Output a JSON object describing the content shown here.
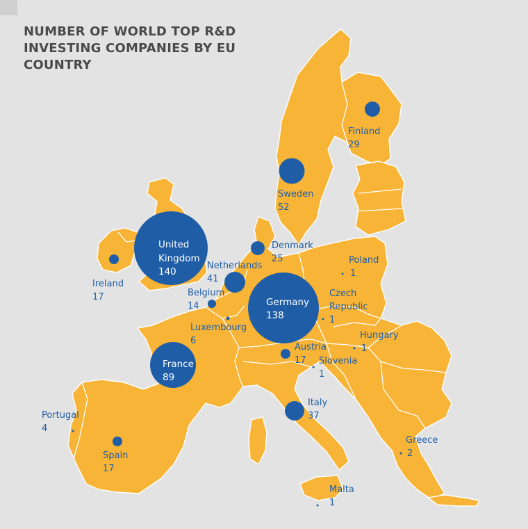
{
  "title": "NUMBER OF WORLD TOP R&D INVESTING COMPANIES BY EU COUNTRY",
  "colors": {
    "background": "#e3e3e3",
    "land": "#f7b436",
    "marker": "#1f5ea7",
    "border": "#ffffff"
  },
  "countries": [
    {
      "id": "finland",
      "name": "Finland",
      "value": "29"
    },
    {
      "id": "sweden",
      "name": "Sweden",
      "value": "52"
    },
    {
      "id": "denmark",
      "name": "Denmark",
      "value": "25"
    },
    {
      "id": "uk",
      "name": "United Kingdom",
      "value": "140"
    },
    {
      "id": "ireland",
      "name": "Ireland",
      "value": "17"
    },
    {
      "id": "netherlands",
      "name": "Netherlands",
      "value": "41"
    },
    {
      "id": "belgium",
      "name": "Belgium",
      "value": "14"
    },
    {
      "id": "luxembourg",
      "name": "Luxembourg",
      "value": "6"
    },
    {
      "id": "germany",
      "name": "Germany",
      "value": "138"
    },
    {
      "id": "poland",
      "name": "Poland",
      "value": "1"
    },
    {
      "id": "czech",
      "name": "Czech Republic",
      "value": "1"
    },
    {
      "id": "hungary",
      "name": "Hungary",
      "value": "1"
    },
    {
      "id": "austria",
      "name": "Austria",
      "value": "17"
    },
    {
      "id": "slovenia",
      "name": "Slovenia",
      "value": "1"
    },
    {
      "id": "france",
      "name": "France",
      "value": "89"
    },
    {
      "id": "italy",
      "name": "Italy",
      "value": "37"
    },
    {
      "id": "portugal",
      "name": "Portugal",
      "value": "4"
    },
    {
      "id": "spain",
      "name": "Spain",
      "value": "17"
    },
    {
      "id": "greece",
      "name": "Greece",
      "value": "2"
    },
    {
      "id": "malta",
      "name": "Malta",
      "value": "1"
    }
  ]
}
